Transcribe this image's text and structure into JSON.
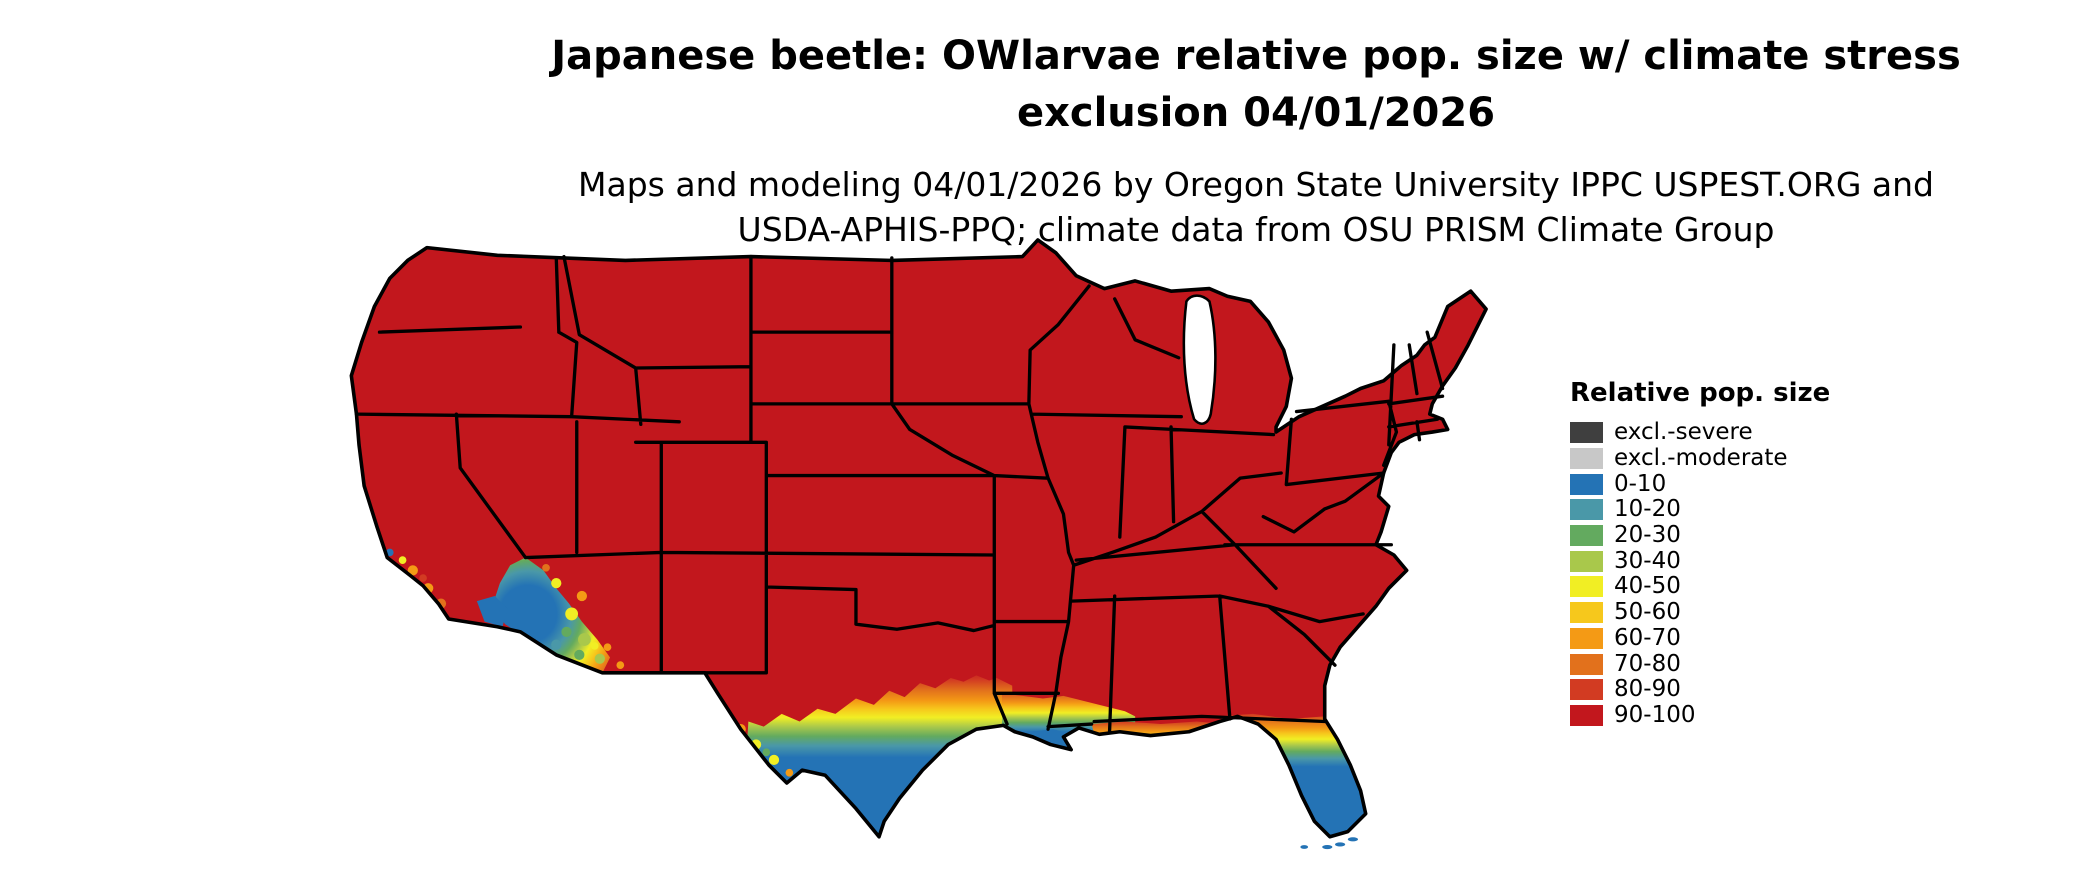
{
  "header": {
    "title_line1": "Japanese beetle: OWlarvae relative pop. size w/ climate stress",
    "title_line2": "exclusion 04/01/2026",
    "subtitle_line1": "Maps and modeling 04/01/2026 by Oregon State University IPPC USPEST.ORG and",
    "subtitle_line2": "USDA-APHIS-PPQ; climate data from OSU PRISM Climate Group"
  },
  "legend": {
    "title": "Relative pop. size",
    "items": [
      {
        "label": "excl.-severe",
        "color": "#3f3f3f"
      },
      {
        "label": "excl.-moderate",
        "color": "#c8c8c8"
      },
      {
        "label": "0-10",
        "color": "#2473b5"
      },
      {
        "label": "10-20",
        "color": "#4a98a8"
      },
      {
        "label": "20-30",
        "color": "#63aa5f"
      },
      {
        "label": "30-40",
        "color": "#a9c84b"
      },
      {
        "label": "40-50",
        "color": "#f1ee24"
      },
      {
        "label": "50-60",
        "color": "#f6c81c"
      },
      {
        "label": "60-70",
        "color": "#f49a15"
      },
      {
        "label": "70-80",
        "color": "#e2711c"
      },
      {
        "label": "80-90",
        "color": "#d23b22"
      },
      {
        "label": "90-100",
        "color": "#c2171d"
      }
    ]
  },
  "map_data": {
    "type": "choropleth",
    "region": "Continental United States",
    "dominant_class": "90-100",
    "low_value_areas": [
      {
        "area": "southern Texas and lower Rio Grande valley",
        "classes": "0-10 through 50-60"
      },
      {
        "area": "Gulf Coast of Texas, Louisiana, Mississippi and Alabama",
        "classes": "0-10 through 70-80"
      },
      {
        "area": "Florida peninsula and panhandle coast",
        "classes": "0-10 through 70-80"
      },
      {
        "area": "lower Colorado River valley and southwestern Arizona",
        "classes": "0-10 through 80-90"
      },
      {
        "area": "southern California coast and Imperial Valley",
        "classes": "0-10 through 80-90"
      }
    ]
  }
}
